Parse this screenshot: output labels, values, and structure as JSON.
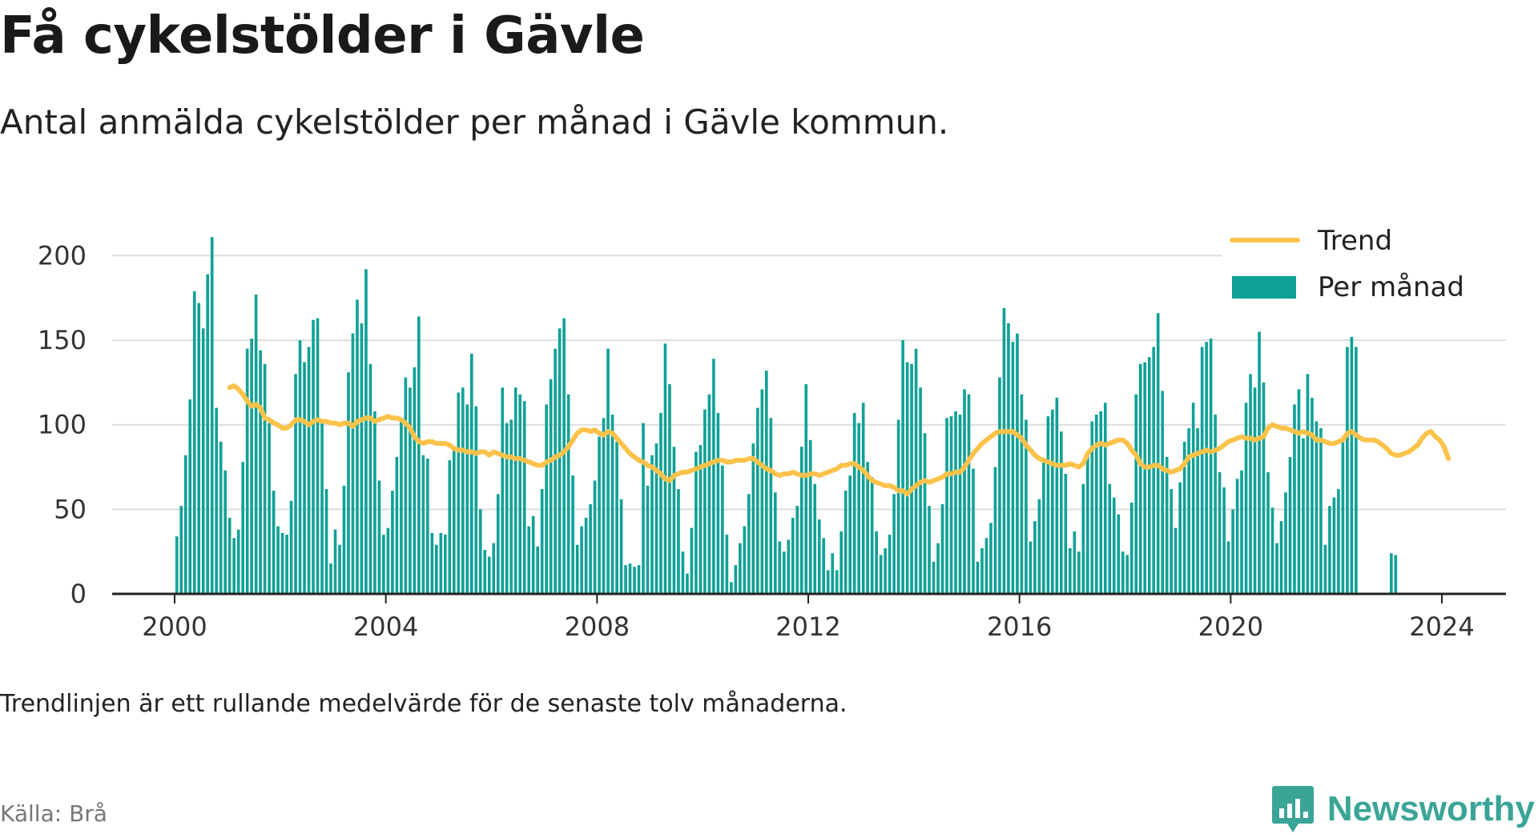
{
  "header": {
    "title": "Få cykelstölder i Gävle",
    "subtitle": "Antal anmälda cykelstölder per månad i Gävle kommun."
  },
  "footer": {
    "note": "Trendlinjen är ett rullande medelvärde för de senaste tolv månaderna.",
    "source": "Källa: Brå",
    "brand": "Newsworthy"
  },
  "colors": {
    "bar": "#0ea196",
    "trend": "#fcc24a",
    "grid": "#dddddd",
    "axis": "#222222",
    "brand": "#3aa596"
  },
  "icons": {
    "brand_logo": "bar-chart-speech-icon"
  },
  "chart_data": {
    "type": "bar",
    "x_start": "2000-01",
    "x_ticks": [
      "2000",
      "2004",
      "2008",
      "2012",
      "2016",
      "2020",
      "2024"
    ],
    "y_ticks": [
      "0",
      "50",
      "100",
      "150",
      "200"
    ],
    "ylim": [
      0,
      220
    ],
    "grid": true,
    "legend_position": "top-right",
    "series": [
      {
        "name": "Per månad",
        "kind": "bar",
        "values": [
          34,
          52,
          82,
          115,
          179,
          172,
          157,
          189,
          211,
          110,
          90,
          73,
          45,
          33,
          38,
          78,
          145,
          151,
          177,
          144,
          136,
          101,
          61,
          40,
          36,
          35,
          55,
          130,
          150,
          137,
          146,
          162,
          163,
          101,
          62,
          18,
          38,
          29,
          64,
          131,
          154,
          174,
          160,
          192,
          136,
          108,
          67,
          35,
          39,
          61,
          81,
          102,
          128,
          122,
          134,
          164,
          82,
          80,
          36,
          29,
          36,
          35,
          79,
          87,
          119,
          122,
          112,
          142,
          111,
          50,
          26,
          22,
          30,
          59,
          122,
          101,
          103,
          122,
          118,
          114,
          40,
          46,
          28,
          62,
          112,
          127,
          145,
          157,
          163,
          118,
          70,
          29,
          40,
          45,
          53,
          67,
          93,
          104,
          145,
          106,
          90,
          56,
          17,
          18,
          16,
          17,
          101,
          64,
          82,
          89,
          107,
          148,
          124,
          87,
          62,
          25,
          12,
          39,
          84,
          88,
          109,
          118,
          139,
          107,
          76,
          35,
          7,
          17,
          30,
          40,
          59,
          89,
          110,
          121,
          132,
          104,
          60,
          31,
          25,
          32,
          45,
          52,
          87,
          124,
          91,
          65,
          44,
          33,
          14,
          24,
          14,
          37,
          61,
          70,
          107,
          101,
          113,
          78,
          69,
          37,
          23,
          27,
          35,
          59,
          103,
          150,
          137,
          136,
          145,
          122,
          95,
          52,
          19,
          30,
          53,
          104,
          105,
          108,
          106,
          121,
          118,
          74,
          19,
          27,
          33,
          42,
          75,
          128,
          169,
          160,
          149,
          154,
          118,
          103,
          31,
          43,
          56,
          79,
          105,
          109,
          116,
          96,
          71,
          27,
          37,
          25,
          65,
          83,
          102,
          106,
          108,
          113,
          65,
          57,
          47,
          25,
          23,
          54,
          118,
          136,
          137,
          140,
          146,
          166,
          120,
          81,
          62,
          39,
          66,
          90,
          98,
          113,
          98,
          146,
          149,
          151,
          106,
          72,
          63,
          31,
          50,
          68,
          73,
          113,
          130,
          122,
          155,
          125,
          72,
          51,
          30,
          43,
          60,
          81,
          112,
          121,
          92,
          130,
          116,
          102,
          98,
          29,
          52,
          57,
          62,
          93,
          146,
          152,
          146,
          0,
          0,
          0,
          0,
          0,
          0,
          0,
          24,
          23
        ]
      },
      {
        "name": "Trend",
        "kind": "line",
        "start_month_index": 12,
        "values": [
          122,
          123,
          121,
          118,
          114,
          111,
          112,
          110,
          104,
          103,
          101,
          100,
          98,
          98,
          100,
          103,
          103,
          102,
          100,
          102,
          103,
          102,
          102,
          101,
          101,
          100,
          101,
          101,
          99,
          102,
          103,
          104,
          104,
          102,
          103,
          104,
          105,
          104,
          104,
          103,
          101,
          98,
          93,
          90,
          89,
          90,
          90,
          89,
          89,
          89,
          88,
          86,
          85,
          85,
          84,
          84,
          83,
          84,
          84,
          82,
          84,
          83,
          82,
          81,
          81,
          80,
          80,
          79,
          78,
          77,
          76,
          76,
          78,
          79,
          81,
          82,
          84,
          87,
          91,
          95,
          97,
          97,
          96,
          97,
          95,
          94,
          96,
          95,
          92,
          89,
          86,
          83,
          81,
          79,
          78,
          76,
          75,
          73,
          71,
          68,
          67,
          70,
          71,
          72,
          72,
          73,
          74,
          75,
          76,
          77,
          78,
          79,
          79,
          78,
          78,
          79,
          79,
          79,
          80,
          80,
          78,
          76,
          74,
          73,
          71,
          70,
          71,
          71,
          72,
          71,
          70,
          70,
          71,
          71,
          70,
          71,
          72,
          73,
          74,
          76,
          76,
          77,
          77,
          75,
          73,
          70,
          67,
          66,
          65,
          64,
          64,
          63,
          61,
          61,
          59,
          62,
          64,
          66,
          67,
          66,
          67,
          68,
          69,
          71,
          71,
          72,
          72,
          75,
          79,
          83,
          86,
          89,
          91,
          93,
          95,
          96,
          96,
          96,
          96,
          94,
          92,
          88,
          85,
          82,
          80,
          79,
          78,
          77,
          76,
          76,
          76,
          77,
          76,
          75,
          77,
          83,
          86,
          88,
          89,
          88,
          89,
          90,
          91,
          91,
          89,
          85,
          82,
          77,
          75,
          75,
          76,
          76,
          74,
          73,
          72,
          73,
          74,
          77,
          81,
          82,
          83,
          84,
          85,
          84,
          85,
          86,
          88,
          90,
          91,
          92,
          93,
          92,
          92,
          91,
          92,
          93,
          98,
          100,
          99,
          98,
          98,
          97,
          96,
          95,
          96,
          95,
          94,
          91,
          91,
          90,
          89,
          89,
          90,
          91,
          95,
          96,
          94,
          92,
          91,
          91,
          91,
          90,
          88,
          86,
          83,
          82,
          82,
          83,
          84,
          86,
          88,
          92,
          95,
          96,
          93,
          91,
          87,
          80
        ]
      }
    ]
  }
}
